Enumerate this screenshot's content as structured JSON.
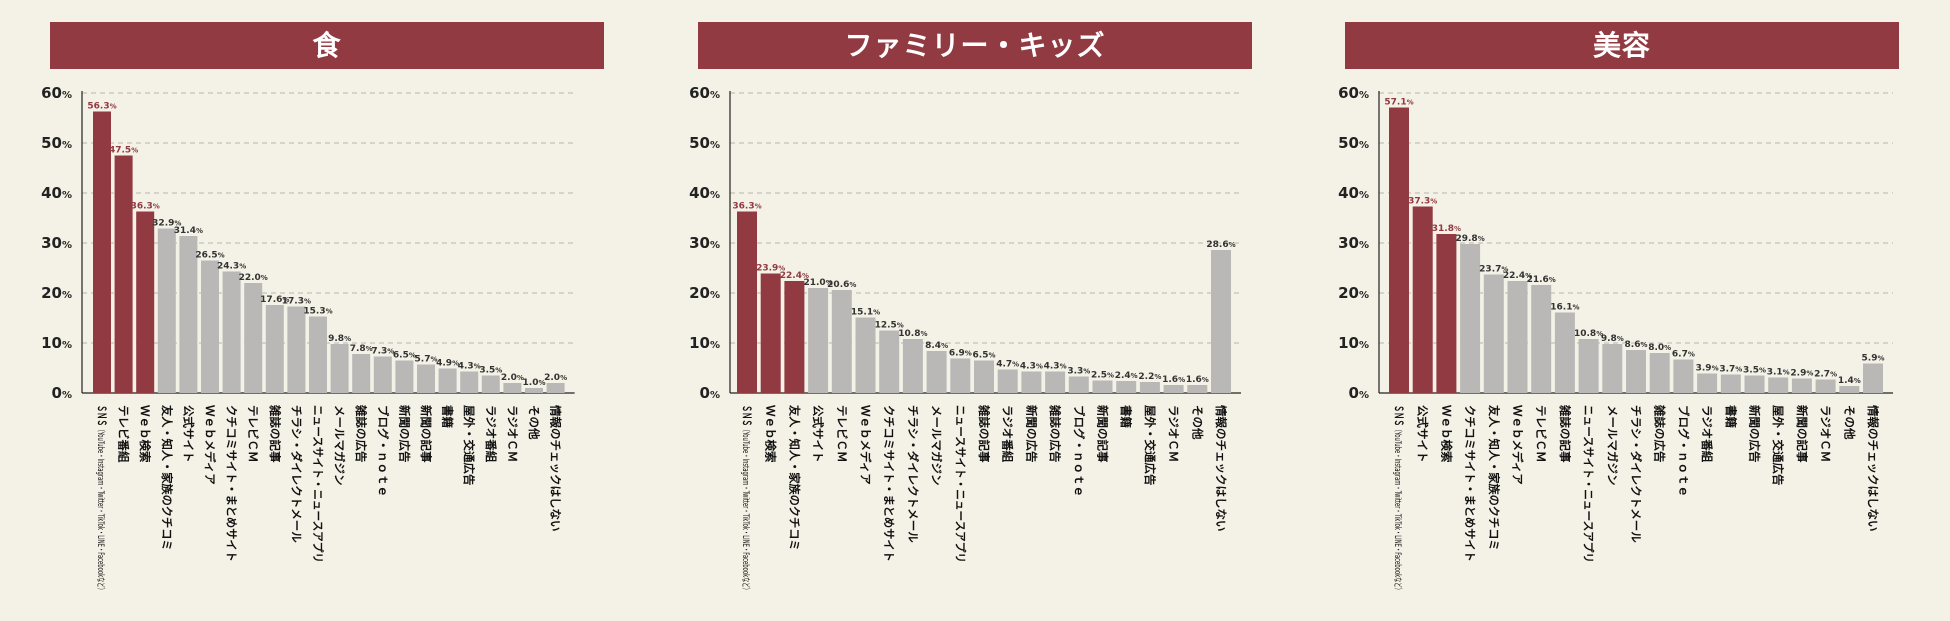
{
  "colors": {
    "highlight": "#913a41",
    "normal": "#b9b8b7",
    "title_bg": "#913a41",
    "background": "#f4f1e6"
  },
  "chart_data": [
    {
      "type": "bar",
      "title": "食",
      "ylim": [
        0,
        60
      ],
      "yticks": [
        "0",
        "10",
        "20",
        "30",
        "40",
        "50",
        "60"
      ],
      "ytick_unit": "%",
      "value_unit": "%",
      "grid": true,
      "categories": [
        "ＳＮＳ（YouTube・Instagram・Twitter・TikTok・LINE・Facebookなど）",
        "テレビ番組",
        "Ｗｅｂ検索",
        "友人・知人・家族のクチコミ",
        "公式サイト",
        "Ｗｅｂメディア",
        "クチコミサイト・まとめサイト",
        "テレビＣＭ",
        "雑誌の記事",
        "チラシ・ダイレクトメール",
        "ニュースサイト・ニュースアプリ",
        "メールマガジン",
        "雑誌の広告",
        "ブログ・ｎｏｔｅ",
        "新聞の広告",
        "新聞の記事",
        "書籍",
        "屋外・交通広告",
        "ラジオ番組",
        "ラジオＣＭ",
        "その他",
        "情報のチェックはしない"
      ],
      "values": [
        56.3,
        47.5,
        36.3,
        32.9,
        31.4,
        26.5,
        24.3,
        22.0,
        17.6,
        17.3,
        15.3,
        9.8,
        7.8,
        7.3,
        6.5,
        5.7,
        4.9,
        4.3,
        3.5,
        2.0,
        1.0,
        2.0
      ],
      "value_labels": [
        "56.3",
        "47.5",
        "36.3",
        "32.9",
        "31.4",
        "26.5",
        "24.3",
        "22.0",
        "17.6",
        "17.3",
        "15.3",
        "9.8",
        "7.8",
        "7.3",
        "6.5",
        "5.7",
        "4.9",
        "4.3",
        "3.5",
        "2.0",
        "1.0",
        "2.0"
      ],
      "highlight_count": 3
    },
    {
      "type": "bar",
      "title": "ファミリー・キッズ",
      "ylim": [
        0,
        60
      ],
      "yticks": [
        "0",
        "10",
        "20",
        "30",
        "40",
        "50",
        "60"
      ],
      "ytick_unit": "%",
      "value_unit": "%",
      "grid": true,
      "categories": [
        "ＳＮＳ（YouTube・Instagram・Twitter・TikTok・LINE・Facebookなど）",
        "Ｗｅｂ検索",
        "友人・知人・家族のクチコミ",
        "公式サイト",
        "テレビＣＭ",
        "Ｗｅｂメディア",
        "クチコミサイト・まとめサイト",
        "チラシ・ダイレクトメール",
        "メールマガジン",
        "ニュースサイト・ニュースアプリ",
        "雑誌の記事",
        "ラジオ番組",
        "新聞の広告",
        "雑誌の広告",
        "ブログ・ｎｏｔｅ",
        "新聞の記事",
        "書籍",
        "屋外・交通広告",
        "ラジオＣＭ",
        "その他",
        "情報のチェックはしない"
      ],
      "values": [
        36.3,
        23.9,
        22.4,
        21.0,
        20.6,
        15.1,
        12.5,
        10.8,
        8.4,
        6.9,
        6.5,
        4.7,
        4.3,
        4.3,
        3.3,
        2.5,
        2.4,
        2.2,
        1.6,
        1.6,
        28.6
      ],
      "value_labels": [
        "36.3",
        "23.9",
        "22.4",
        "21.0",
        "20.6",
        "15.1",
        "12.5",
        "10.8",
        "8.4",
        "6.9",
        "6.5",
        "4.7",
        "4.3",
        "4.3",
        "3.3",
        "2.5",
        "2.4",
        "2.2",
        "1.6",
        "1.6",
        "28.6"
      ],
      "highlight_count": 3
    },
    {
      "type": "bar",
      "title": "美容",
      "ylim": [
        0,
        60
      ],
      "yticks": [
        "0",
        "10",
        "20",
        "30",
        "40",
        "50",
        "60"
      ],
      "ytick_unit": "%",
      "value_unit": "%",
      "grid": true,
      "categories": [
        "ＳＮＳ（YouTube・Instagram・Twitter・TikTok・LINE・Facebookなど）",
        "公式サイト",
        "Ｗｅｂ検索",
        "クチコミサイト・まとめサイト",
        "友人・知人・家族のクチコミ",
        "Ｗｅｂメディア",
        "テレビＣＭ",
        "雑誌の記事",
        "ニュースサイト・ニュースアプリ",
        "メールマガジン",
        "チラシ・ダイレクトメール",
        "雑誌の広告",
        "ブログ・ｎｏｔｅ",
        "ラジオ番組",
        "書籍",
        "新聞の広告",
        "屋外・交通広告",
        "新聞の記事",
        "ラジオＣＭ",
        "その他",
        "情報のチェックはしない"
      ],
      "values": [
        57.1,
        37.3,
        31.8,
        29.8,
        23.7,
        22.4,
        21.6,
        16.1,
        10.8,
        9.8,
        8.6,
        8.0,
        6.7,
        3.9,
        3.7,
        3.5,
        3.1,
        2.9,
        2.7,
        1.4,
        5.9
      ],
      "value_labels": [
        "57.1",
        "37.3",
        "31.8",
        "29.8",
        "23.7",
        "22.4",
        "21.6",
        "16.1",
        "10.8",
        "9.8",
        "8.6",
        "8.0",
        "6.7",
        "3.9",
        "3.7",
        "3.5",
        "3.1",
        "2.9",
        "2.7",
        "1.4",
        "5.9"
      ],
      "highlight_count": 3
    }
  ]
}
